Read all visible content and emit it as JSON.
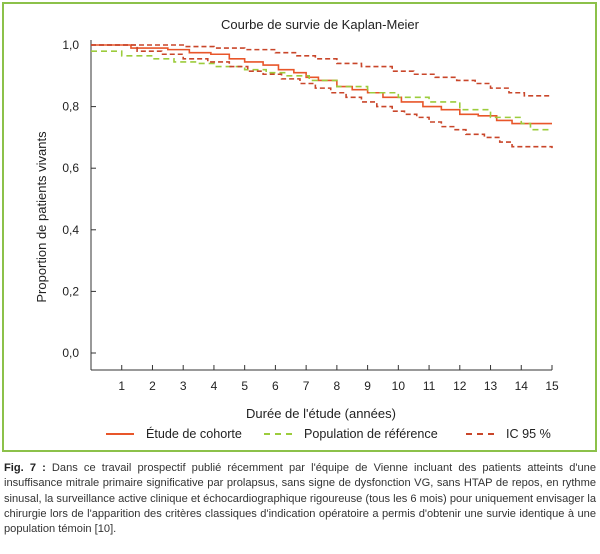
{
  "chart_data": {
    "type": "line",
    "title": "Courbe de survie de Kaplan-Meier",
    "xlabel": "Durée de l'étude (années)",
    "ylabel": "Proportion de patients vivants",
    "xlim": [
      0,
      15
    ],
    "ylim": [
      0,
      1
    ],
    "x_ticks": [
      "1",
      "2",
      "3",
      "4",
      "5",
      "6",
      "7",
      "8",
      "9",
      "10",
      "11",
      "12",
      "13",
      "14",
      "15"
    ],
    "y_ticks": [
      "0,0",
      "0,2",
      "0,4",
      "0,6",
      "0,8",
      "1,0"
    ],
    "grid": false,
    "legend_position": "bottom",
    "series": [
      {
        "name": "Étude de cohorte",
        "color": "#e8562a",
        "style": "solid",
        "steps": [
          [
            0,
            1.0
          ],
          [
            1.3,
            0.99
          ],
          [
            2.5,
            0.985
          ],
          [
            3.2,
            0.975
          ],
          [
            3.9,
            0.97
          ],
          [
            4.5,
            0.955
          ],
          [
            5.0,
            0.945
          ],
          [
            5.6,
            0.935
          ],
          [
            6.1,
            0.92
          ],
          [
            6.6,
            0.91
          ],
          [
            7.0,
            0.895
          ],
          [
            7.4,
            0.885
          ],
          [
            8.0,
            0.865
          ],
          [
            8.5,
            0.855
          ],
          [
            9.0,
            0.845
          ],
          [
            9.5,
            0.83
          ],
          [
            10.1,
            0.815
          ],
          [
            10.8,
            0.8
          ],
          [
            11.4,
            0.79
          ],
          [
            12.0,
            0.775
          ],
          [
            12.6,
            0.77
          ],
          [
            13.2,
            0.755
          ],
          [
            13.7,
            0.745
          ],
          [
            15,
            0.745
          ]
        ]
      },
      {
        "name": "Population de référence",
        "color": "#9ccc3c",
        "style": "dash",
        "steps": [
          [
            0,
            0.98
          ],
          [
            1.0,
            0.965
          ],
          [
            2.0,
            0.955
          ],
          [
            2.7,
            0.945
          ],
          [
            3.5,
            0.94
          ],
          [
            4.0,
            0.93
          ],
          [
            5.0,
            0.92
          ],
          [
            5.7,
            0.91
          ],
          [
            6.3,
            0.9
          ],
          [
            7.1,
            0.885
          ],
          [
            8.0,
            0.865
          ],
          [
            9.0,
            0.845
          ],
          [
            10.0,
            0.83
          ],
          [
            11.0,
            0.815
          ],
          [
            12.0,
            0.79
          ],
          [
            13.0,
            0.765
          ],
          [
            14.0,
            0.745
          ],
          [
            14.3,
            0.725
          ],
          [
            15,
            0.725
          ]
        ]
      },
      {
        "name": "IC 95 %",
        "color": "#c9462a",
        "style": "shortdash",
        "steps": [
          [
            0,
            1.0
          ],
          [
            3.0,
            0.995
          ],
          [
            4.0,
            0.99
          ],
          [
            5.0,
            0.985
          ],
          [
            6.0,
            0.975
          ],
          [
            6.7,
            0.965
          ],
          [
            7.3,
            0.955
          ],
          [
            8.0,
            0.94
          ],
          [
            8.8,
            0.93
          ],
          [
            9.8,
            0.915
          ],
          [
            10.5,
            0.905
          ],
          [
            11.2,
            0.895
          ],
          [
            11.9,
            0.885
          ],
          [
            12.5,
            0.875
          ],
          [
            13.0,
            0.86
          ],
          [
            13.6,
            0.845
          ],
          [
            14.1,
            0.835
          ],
          [
            15,
            0.835
          ]
        ]
      },
      {
        "name": "IC 95 %",
        "color": "#c9462a",
        "style": "shortdash",
        "steps": [
          [
            0,
            1.0
          ],
          [
            1.5,
            0.98
          ],
          [
            2.3,
            0.97
          ],
          [
            3.0,
            0.955
          ],
          [
            3.8,
            0.945
          ],
          [
            4.5,
            0.93
          ],
          [
            5.1,
            0.915
          ],
          [
            5.6,
            0.905
          ],
          [
            6.2,
            0.89
          ],
          [
            6.8,
            0.875
          ],
          [
            7.3,
            0.86
          ],
          [
            7.8,
            0.845
          ],
          [
            8.3,
            0.83
          ],
          [
            8.8,
            0.815
          ],
          [
            9.3,
            0.8
          ],
          [
            9.8,
            0.785
          ],
          [
            10.2,
            0.775
          ],
          [
            10.6,
            0.765
          ],
          [
            11.0,
            0.75
          ],
          [
            11.4,
            0.735
          ],
          [
            11.8,
            0.725
          ],
          [
            12.2,
            0.71
          ],
          [
            12.8,
            0.7
          ],
          [
            13.3,
            0.685
          ],
          [
            13.7,
            0.67
          ],
          [
            15,
            0.665
          ]
        ]
      }
    ]
  },
  "legend": [
    {
      "label": "Étude de cohorte",
      "color": "#e8562a",
      "style": "solid"
    },
    {
      "label": "Population de référence",
      "color": "#9ccc3c",
      "style": "dash"
    },
    {
      "label": "IC 95 %",
      "color": "#c9462a",
      "style": "shortdash"
    }
  ],
  "caption": {
    "lead": "Fig. 7 :",
    "text": " Dans ce travail prospectif publié récemment par l'équipe de Vienne incluant des patients atteints d'une insuffisance mitrale primaire significative par prolapsus, sans signe de dysfonction VG, sans HTAP de repos, en rythme sinusal, la surveillance active clinique et échocardiographique rigoureuse (tous les 6 mois) pour uniquement envisager la chirurgie lors de l'apparition des critères classiques d'indication opératoire a permis d'obtenir une survie identique à une population témoin [10]."
  }
}
